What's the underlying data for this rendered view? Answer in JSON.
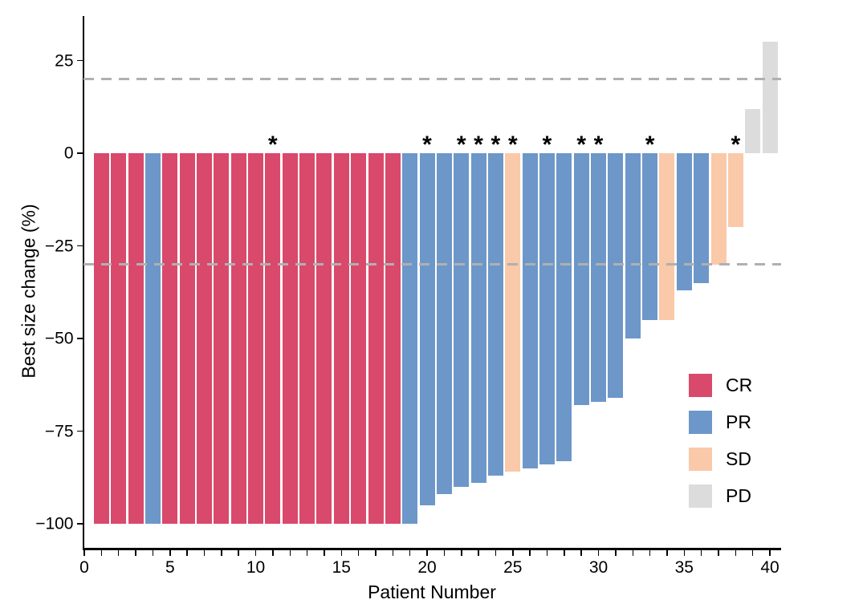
{
  "figure": {
    "background": "#ffffff",
    "xlabel": "Patient Number",
    "ylabel": "Best size change (%)"
  },
  "chart_data": {
    "type": "bar",
    "subtype": "waterfall",
    "title": "",
    "xlabel": "Patient Number",
    "ylabel": "Best size change (%)",
    "xlim": [
      0,
      40.8
    ],
    "ylim": [
      -106,
      37
    ],
    "x_major_ticks": [
      0,
      5,
      10,
      15,
      20,
      25,
      30,
      35,
      40
    ],
    "x_major_tick_labels": [
      "0",
      "5",
      "10",
      "15",
      "20",
      "25",
      "30",
      "35",
      "40"
    ],
    "x_minor_tick_step": 1,
    "y_ticks": [
      25,
      0,
      -25,
      -50,
      -75,
      -100
    ],
    "y_tick_labels": [
      "25",
      "0",
      "−25",
      "−50",
      "−75",
      "−100"
    ],
    "grid": false,
    "reference_lines": [
      {
        "name": "upper-threshold",
        "y": 20,
        "style": "dashed",
        "color": "#b0b0b0"
      },
      {
        "name": "lower-threshold",
        "y": -30,
        "style": "dashed",
        "color": "#b0b0b0"
      }
    ],
    "annotation_symbol": "*",
    "colors": {
      "CR": "#d9496b",
      "PR": "#6d97c9",
      "SD": "#f9c9a9",
      "PD": "#dcdcdc"
    },
    "legend": {
      "position": "inside-right",
      "entries": [
        {
          "label": "CR",
          "color": "#d9496b"
        },
        {
          "label": "PR",
          "color": "#6d97c9"
        },
        {
          "label": "SD",
          "color": "#f9c9a9"
        },
        {
          "label": "PD",
          "color": "#dcdcdc"
        }
      ]
    },
    "series": [
      {
        "name": "Best size change (%)",
        "points": [
          {
            "patient": 1,
            "value": -100,
            "response": "CR",
            "star": false
          },
          {
            "patient": 2,
            "value": -100,
            "response": "CR",
            "star": false
          },
          {
            "patient": 3,
            "value": -100,
            "response": "CR",
            "star": false
          },
          {
            "patient": 4,
            "value": -100,
            "response": "PR",
            "star": false
          },
          {
            "patient": 5,
            "value": -100,
            "response": "CR",
            "star": false
          },
          {
            "patient": 6,
            "value": -100,
            "response": "CR",
            "star": false
          },
          {
            "patient": 7,
            "value": -100,
            "response": "CR",
            "star": false
          },
          {
            "patient": 8,
            "value": -100,
            "response": "CR",
            "star": false
          },
          {
            "patient": 9,
            "value": -100,
            "response": "CR",
            "star": false
          },
          {
            "patient": 10,
            "value": -100,
            "response": "CR",
            "star": false
          },
          {
            "patient": 11,
            "value": -100,
            "response": "CR",
            "star": true
          },
          {
            "patient": 12,
            "value": -100,
            "response": "CR",
            "star": false
          },
          {
            "patient": 13,
            "value": -100,
            "response": "CR",
            "star": false
          },
          {
            "patient": 14,
            "value": -100,
            "response": "CR",
            "star": false
          },
          {
            "patient": 15,
            "value": -100,
            "response": "CR",
            "star": false
          },
          {
            "patient": 16,
            "value": -100,
            "response": "CR",
            "star": false
          },
          {
            "patient": 17,
            "value": -100,
            "response": "CR",
            "star": false
          },
          {
            "patient": 18,
            "value": -100,
            "response": "CR",
            "star": false
          },
          {
            "patient": 19,
            "value": -100,
            "response": "PR",
            "star": false
          },
          {
            "patient": 20,
            "value": -95,
            "response": "PR",
            "star": true
          },
          {
            "patient": 21,
            "value": -92,
            "response": "PR",
            "star": false
          },
          {
            "patient": 22,
            "value": -90,
            "response": "PR",
            "star": true
          },
          {
            "patient": 23,
            "value": -89,
            "response": "PR",
            "star": true
          },
          {
            "patient": 24,
            "value": -87,
            "response": "PR",
            "star": true
          },
          {
            "patient": 25,
            "value": -86,
            "response": "SD",
            "star": true
          },
          {
            "patient": 26,
            "value": -85,
            "response": "PR",
            "star": false
          },
          {
            "patient": 27,
            "value": -84,
            "response": "PR",
            "star": true
          },
          {
            "patient": 28,
            "value": -83,
            "response": "PR",
            "star": false
          },
          {
            "patient": 29,
            "value": -68,
            "response": "PR",
            "star": true
          },
          {
            "patient": 30,
            "value": -67,
            "response": "PR",
            "star": true
          },
          {
            "patient": 31,
            "value": -66,
            "response": "PR",
            "star": false
          },
          {
            "patient": 32,
            "value": -50,
            "response": "PR",
            "star": false
          },
          {
            "patient": 33,
            "value": -45,
            "response": "PR",
            "star": true
          },
          {
            "patient": 34,
            "value": -45,
            "response": "SD",
            "star": false
          },
          {
            "patient": 35,
            "value": -37,
            "response": "PR",
            "star": false
          },
          {
            "patient": 36,
            "value": -35,
            "response": "PR",
            "star": false
          },
          {
            "patient": 37,
            "value": -30,
            "response": "SD",
            "star": false
          },
          {
            "patient": 38,
            "value": -20,
            "response": "SD",
            "star": true
          },
          {
            "patient": 39,
            "value": 12,
            "response": "PD",
            "star": false
          },
          {
            "patient": 40,
            "value": 30,
            "response": "PD",
            "star": false
          }
        ]
      }
    ]
  }
}
